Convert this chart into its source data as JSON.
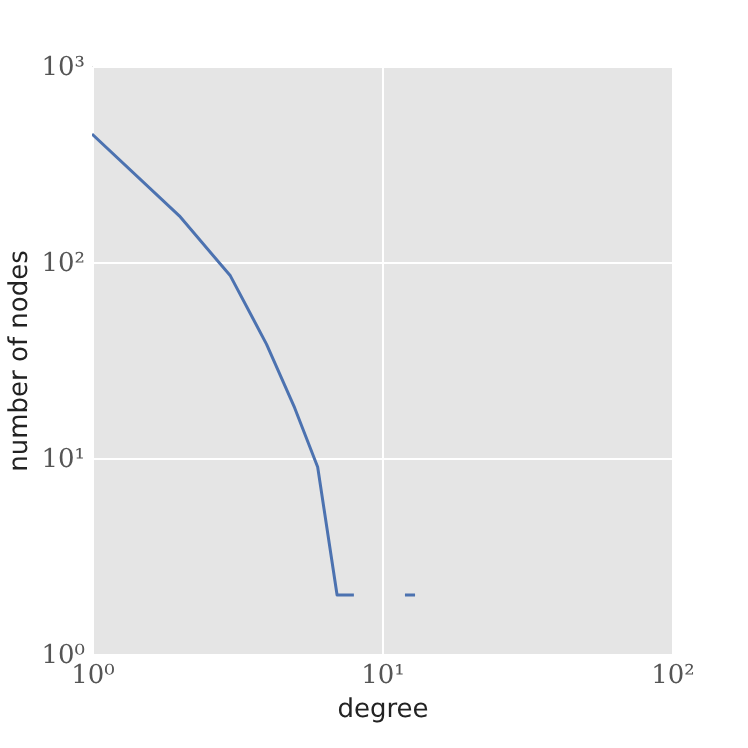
{
  "chart_data": {
    "type": "line",
    "xlabel": "degree",
    "ylabel": "number of nodes",
    "log": "xy",
    "grid": true,
    "x": [
      1,
      2,
      3,
      4,
      5,
      6,
      7,
      8,
      9,
      10,
      11,
      12,
      13
    ],
    "series": [
      {
        "color": "#4c72b0",
        "values": [
          450,
          172,
          85,
          38,
          18,
          9,
          2,
          2,
          null,
          null,
          null,
          2,
          2
        ]
      }
    ],
    "xlim": [
      1,
      100
    ],
    "ylim": [
      1,
      1000
    ],
    "xticks": [
      {
        "value": 1,
        "label": "10⁰"
      },
      {
        "value": 10,
        "label": "10¹"
      },
      {
        "value": 100,
        "label": "10²"
      }
    ],
    "yticks": [
      {
        "value": 1,
        "label": "10⁰"
      },
      {
        "value": 10,
        "label": "10¹"
      },
      {
        "value": 100,
        "label": "10²"
      },
      {
        "value": 1000,
        "label": "10³"
      }
    ]
  }
}
